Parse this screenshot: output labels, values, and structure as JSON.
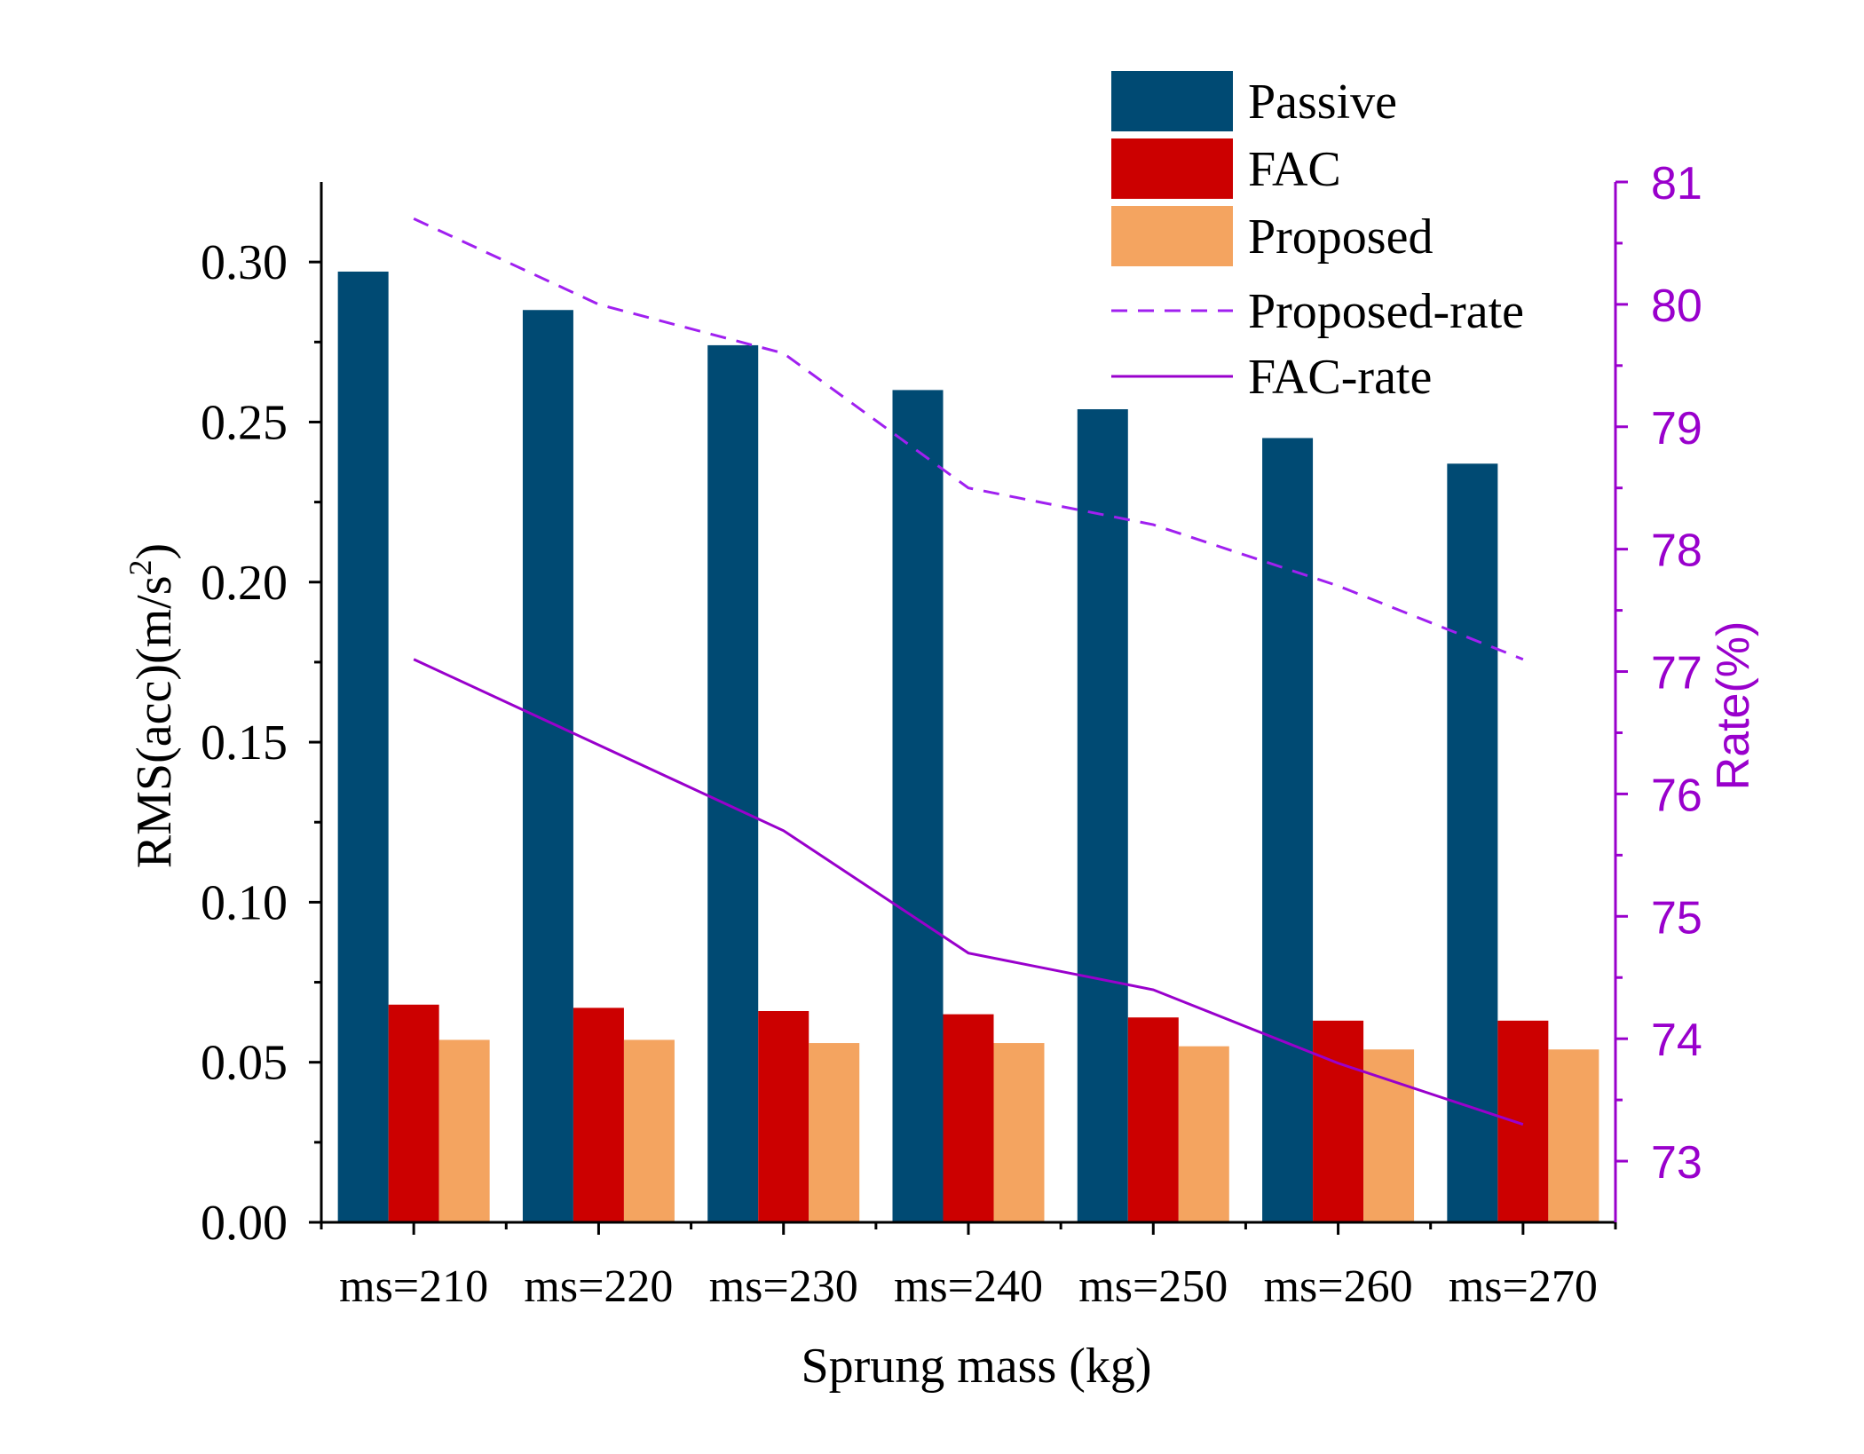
{
  "chart_data": {
    "type": "bar",
    "xlabel": "Sprung mass (kg)",
    "ylabel_left": {
      "base": "RMS(acc)(m/s",
      "sup": "2",
      "close": ")"
    },
    "ylabel_right": "Rate(%)",
    "categories": [
      "ms=210",
      "ms=220",
      "ms=230",
      "ms=240",
      "ms=250",
      "ms=260",
      "ms=270"
    ],
    "ylim": [
      0,
      0.325
    ],
    "yticks": [
      "0.00",
      "0.05",
      "0.10",
      "0.15",
      "0.20",
      "0.25",
      "0.30"
    ],
    "y2lim": [
      72.5,
      81
    ],
    "y2ticks": [
      "73",
      "74",
      "75",
      "76",
      "77",
      "78",
      "79",
      "80",
      "81"
    ],
    "bar_series": [
      {
        "name": "Passive",
        "color": "#004a73",
        "values": [
          0.297,
          0.285,
          0.274,
          0.26,
          0.254,
          0.245,
          0.237
        ]
      },
      {
        "name": "FAC",
        "color": "#cc0000",
        "values": [
          0.068,
          0.067,
          0.066,
          0.065,
          0.064,
          0.063,
          0.063
        ]
      },
      {
        "name": "Proposed",
        "color": "#f4a460",
        "values": [
          0.057,
          0.057,
          0.056,
          0.056,
          0.055,
          0.054,
          0.054
        ]
      }
    ],
    "line_series": [
      {
        "name": "Proposed-rate",
        "color": "#a020f0",
        "style": "dashed",
        "axis": "right",
        "values": [
          80.7,
          80.0,
          79.6,
          78.5,
          78.2,
          77.7,
          77.1
        ]
      },
      {
        "name": "FAC-rate",
        "color": "#9900cc",
        "style": "solid",
        "axis": "right",
        "values": [
          77.1,
          76.4,
          75.7,
          74.7,
          74.4,
          73.8,
          73.3
        ]
      }
    ],
    "legend_position": "top-right"
  }
}
